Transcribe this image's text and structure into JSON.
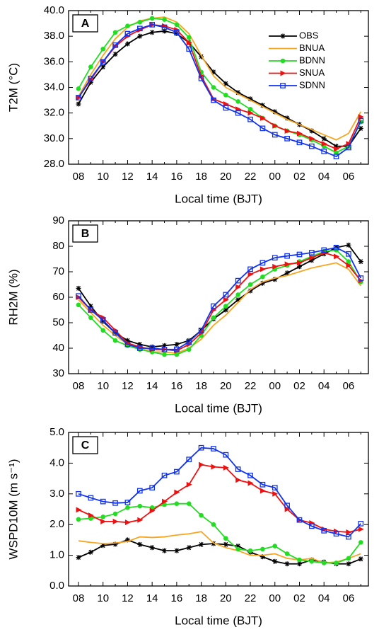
{
  "chart_data": [
    {
      "type": "line",
      "label": "A",
      "xlabel": "Local time (BJT)",
      "ylabel": "T2M (°C)",
      "categories": [
        "08",
        null,
        "10",
        null,
        "12",
        null,
        "14",
        null,
        "16",
        null,
        "18",
        null,
        "20",
        null,
        "22",
        null,
        "00",
        null,
        "02",
        null,
        "04",
        null,
        "06",
        null
      ],
      "ylim": [
        28,
        40
      ],
      "yticks": [
        {
          "value": 28,
          "label": "28.0"
        },
        {
          "value": 30,
          "label": "30.0"
        },
        {
          "value": 32,
          "label": "32.0"
        },
        {
          "value": 34,
          "label": "34.0"
        },
        {
          "value": 36,
          "label": "36.0"
        },
        {
          "value": 38,
          "label": "38.0"
        },
        {
          "value": 40,
          "label": "40.0"
        }
      ],
      "legend": "upper right",
      "series": [
        {
          "name": "OBS",
          "color": "#000000",
          "marker": "asterisk",
          "values": [
            32.7,
            34.4,
            35.6,
            36.6,
            37.4,
            38.0,
            38.3,
            38.4,
            38.2,
            37.5,
            36.4,
            35.2,
            34.3,
            33.6,
            33.1,
            32.6,
            32.1,
            31.6,
            31.1,
            30.6,
            30.0,
            29.4,
            29.4,
            30.8
          ]
        },
        {
          "name": "BNUA",
          "color": "#f5a623",
          "marker": "none",
          "values": [
            33.3,
            35.0,
            36.5,
            37.8,
            38.7,
            39.2,
            39.4,
            39.5,
            39.1,
            38.2,
            36.5,
            34.9,
            34.0,
            33.5,
            33.0,
            32.5,
            32.0,
            31.5,
            31.1,
            30.7,
            30.3,
            29.9,
            30.4,
            32.1
          ]
        },
        {
          "name": "BDNN",
          "color": "#22dd22",
          "marker": "circle",
          "values": [
            33.9,
            35.6,
            37.0,
            38.3,
            38.8,
            39.1,
            39.4,
            39.3,
            38.9,
            37.9,
            35.2,
            34.0,
            33.4,
            32.9,
            32.3,
            31.6,
            31.0,
            30.6,
            30.3,
            29.9,
            29.4,
            28.9,
            29.4,
            31.3
          ]
        },
        {
          "name": "SNUA",
          "color": "#ee1111",
          "marker": "triangle",
          "values": [
            33.2,
            34.6,
            36.0,
            37.2,
            38.0,
            38.5,
            38.9,
            38.8,
            38.5,
            37.5,
            34.9,
            33.1,
            32.7,
            32.3,
            32.0,
            31.6,
            31.0,
            30.6,
            30.4,
            30.0,
            29.6,
            29.2,
            29.6,
            31.7
          ]
        },
        {
          "name": "SDNN",
          "color": "#1133ee",
          "marker": "square",
          "values": [
            33.2,
            34.7,
            36.0,
            37.3,
            38.2,
            38.6,
            38.9,
            38.7,
            38.3,
            37.0,
            34.7,
            33.0,
            32.4,
            32.0,
            31.5,
            30.8,
            30.3,
            30.0,
            29.7,
            29.4,
            29.0,
            28.6,
            29.3,
            31.4
          ]
        }
      ]
    },
    {
      "type": "line",
      "label": "B",
      "xlabel": "Local time (BJT)",
      "ylabel": "RH2M (%)",
      "categories": [
        "08",
        null,
        "10",
        null,
        "12",
        null,
        "14",
        null,
        "16",
        null,
        "18",
        null,
        "20",
        null,
        "22",
        null,
        "00",
        null,
        "02",
        null,
        "04",
        null,
        "06",
        null
      ],
      "ylim": [
        30,
        90
      ],
      "yticks": [
        30,
        40,
        50,
        60,
        70,
        80,
        90
      ],
      "series": [
        {
          "color": "#000000",
          "marker": "asterisk",
          "values": [
            63.5,
            56.5,
            50.5,
            46,
            43,
            41.5,
            40.5,
            41,
            41.5,
            43,
            47,
            51.5,
            55,
            59,
            62.5,
            65.5,
            67,
            69.5,
            72,
            74.5,
            77,
            79.5,
            80.5,
            74
          ]
        },
        {
          "color": "#f5a623",
          "marker": "none",
          "values": [
            59,
            54,
            49,
            45,
            41.5,
            40,
            38.5,
            38.5,
            38,
            40,
            43.5,
            49,
            53,
            58,
            63,
            66,
            67.5,
            68.5,
            70,
            71.5,
            72.5,
            73.5,
            71,
            64.5
          ]
        },
        {
          "color": "#22dd22",
          "marker": "circle",
          "values": [
            57,
            52,
            47,
            43,
            41,
            39.5,
            38.5,
            37.5,
            37.5,
            39.5,
            45,
            52,
            56.5,
            61,
            65,
            68,
            71,
            72.5,
            74,
            76,
            78,
            78.5,
            74,
            66
          ]
        },
        {
          "color": "#ee1111",
          "marker": "triangle",
          "values": [
            60,
            55,
            52,
            47,
            42,
            40.5,
            39.5,
            39.5,
            39,
            41.5,
            46,
            55,
            59,
            64,
            69,
            71,
            72,
            73,
            73.5,
            75.5,
            77.5,
            76,
            72.5,
            66.5
          ]
        },
        {
          "color": "#1133ee",
          "marker": "square",
          "values": [
            60.5,
            55,
            51,
            46,
            41.5,
            40,
            40,
            39.5,
            39.5,
            42.5,
            47,
            56.5,
            61,
            66.5,
            71,
            73.5,
            75.5,
            76.2,
            76.8,
            77.5,
            78.5,
            79.5,
            77,
            67.5
          ]
        }
      ]
    },
    {
      "type": "line",
      "label": "C",
      "xlabel": "Local time (BJT)",
      "ylabel": "WSPD10M (m s⁻¹)",
      "categories": [
        "08",
        null,
        "10",
        null,
        "12",
        null,
        "14",
        null,
        "16",
        null,
        "18",
        null,
        "20",
        null,
        "22",
        null,
        "00",
        null,
        "02",
        null,
        "04",
        null,
        "06",
        null
      ],
      "ylim": [
        0,
        5
      ],
      "yticks": [
        {
          "value": 0,
          "label": "0.0"
        },
        {
          "value": 1,
          "label": "1.0"
        },
        {
          "value": 2,
          "label": "2.0"
        },
        {
          "value": 3,
          "label": "3.0"
        },
        {
          "value": 4,
          "label": "4.0"
        },
        {
          "value": 5,
          "label": "5.0"
        }
      ],
      "series": [
        {
          "color": "#000000",
          "marker": "asterisk",
          "values": [
            0.93,
            1.1,
            1.32,
            1.36,
            1.5,
            1.35,
            1.25,
            1.15,
            1.15,
            1.25,
            1.35,
            1.38,
            1.35,
            1.3,
            1.1,
            0.95,
            0.8,
            0.72,
            0.72,
            0.85,
            0.78,
            0.72,
            0.72,
            0.88
          ]
        },
        {
          "color": "#f5a623",
          "marker": "none",
          "values": [
            1.47,
            1.42,
            1.38,
            1.4,
            1.45,
            1.6,
            1.58,
            1.6,
            1.66,
            1.7,
            1.77,
            1.4,
            1.25,
            1.15,
            1.0,
            1.0,
            1.05,
            0.9,
            0.85,
            0.9,
            0.75,
            0.78,
            0.9,
            1.05
          ]
        },
        {
          "color": "#22dd22",
          "marker": "circle",
          "values": [
            2.17,
            2.2,
            2.25,
            2.35,
            2.55,
            2.6,
            2.55,
            2.65,
            2.68,
            2.68,
            2.3,
            2.0,
            1.55,
            1.2,
            1.15,
            1.2,
            1.3,
            1.05,
            0.85,
            0.8,
            0.75,
            0.75,
            0.9,
            1.42
          ]
        },
        {
          "color": "#ee1111",
          "marker": "triangle",
          "values": [
            2.48,
            2.3,
            2.1,
            2.1,
            2.07,
            2.15,
            2.45,
            2.75,
            3.05,
            3.3,
            3.95,
            3.88,
            3.85,
            3.45,
            3.35,
            3.1,
            3.0,
            2.5,
            2.15,
            2.05,
            1.85,
            1.78,
            1.75,
            1.85
          ]
        },
        {
          "color": "#1133ee",
          "marker": "square",
          "values": [
            3.0,
            2.87,
            2.75,
            2.7,
            2.72,
            3.1,
            3.2,
            3.6,
            3.72,
            4.12,
            4.5,
            4.47,
            4.27,
            3.8,
            3.6,
            3.3,
            3.2,
            2.62,
            2.15,
            1.95,
            1.8,
            1.7,
            1.6,
            2.03
          ]
        }
      ]
    }
  ]
}
